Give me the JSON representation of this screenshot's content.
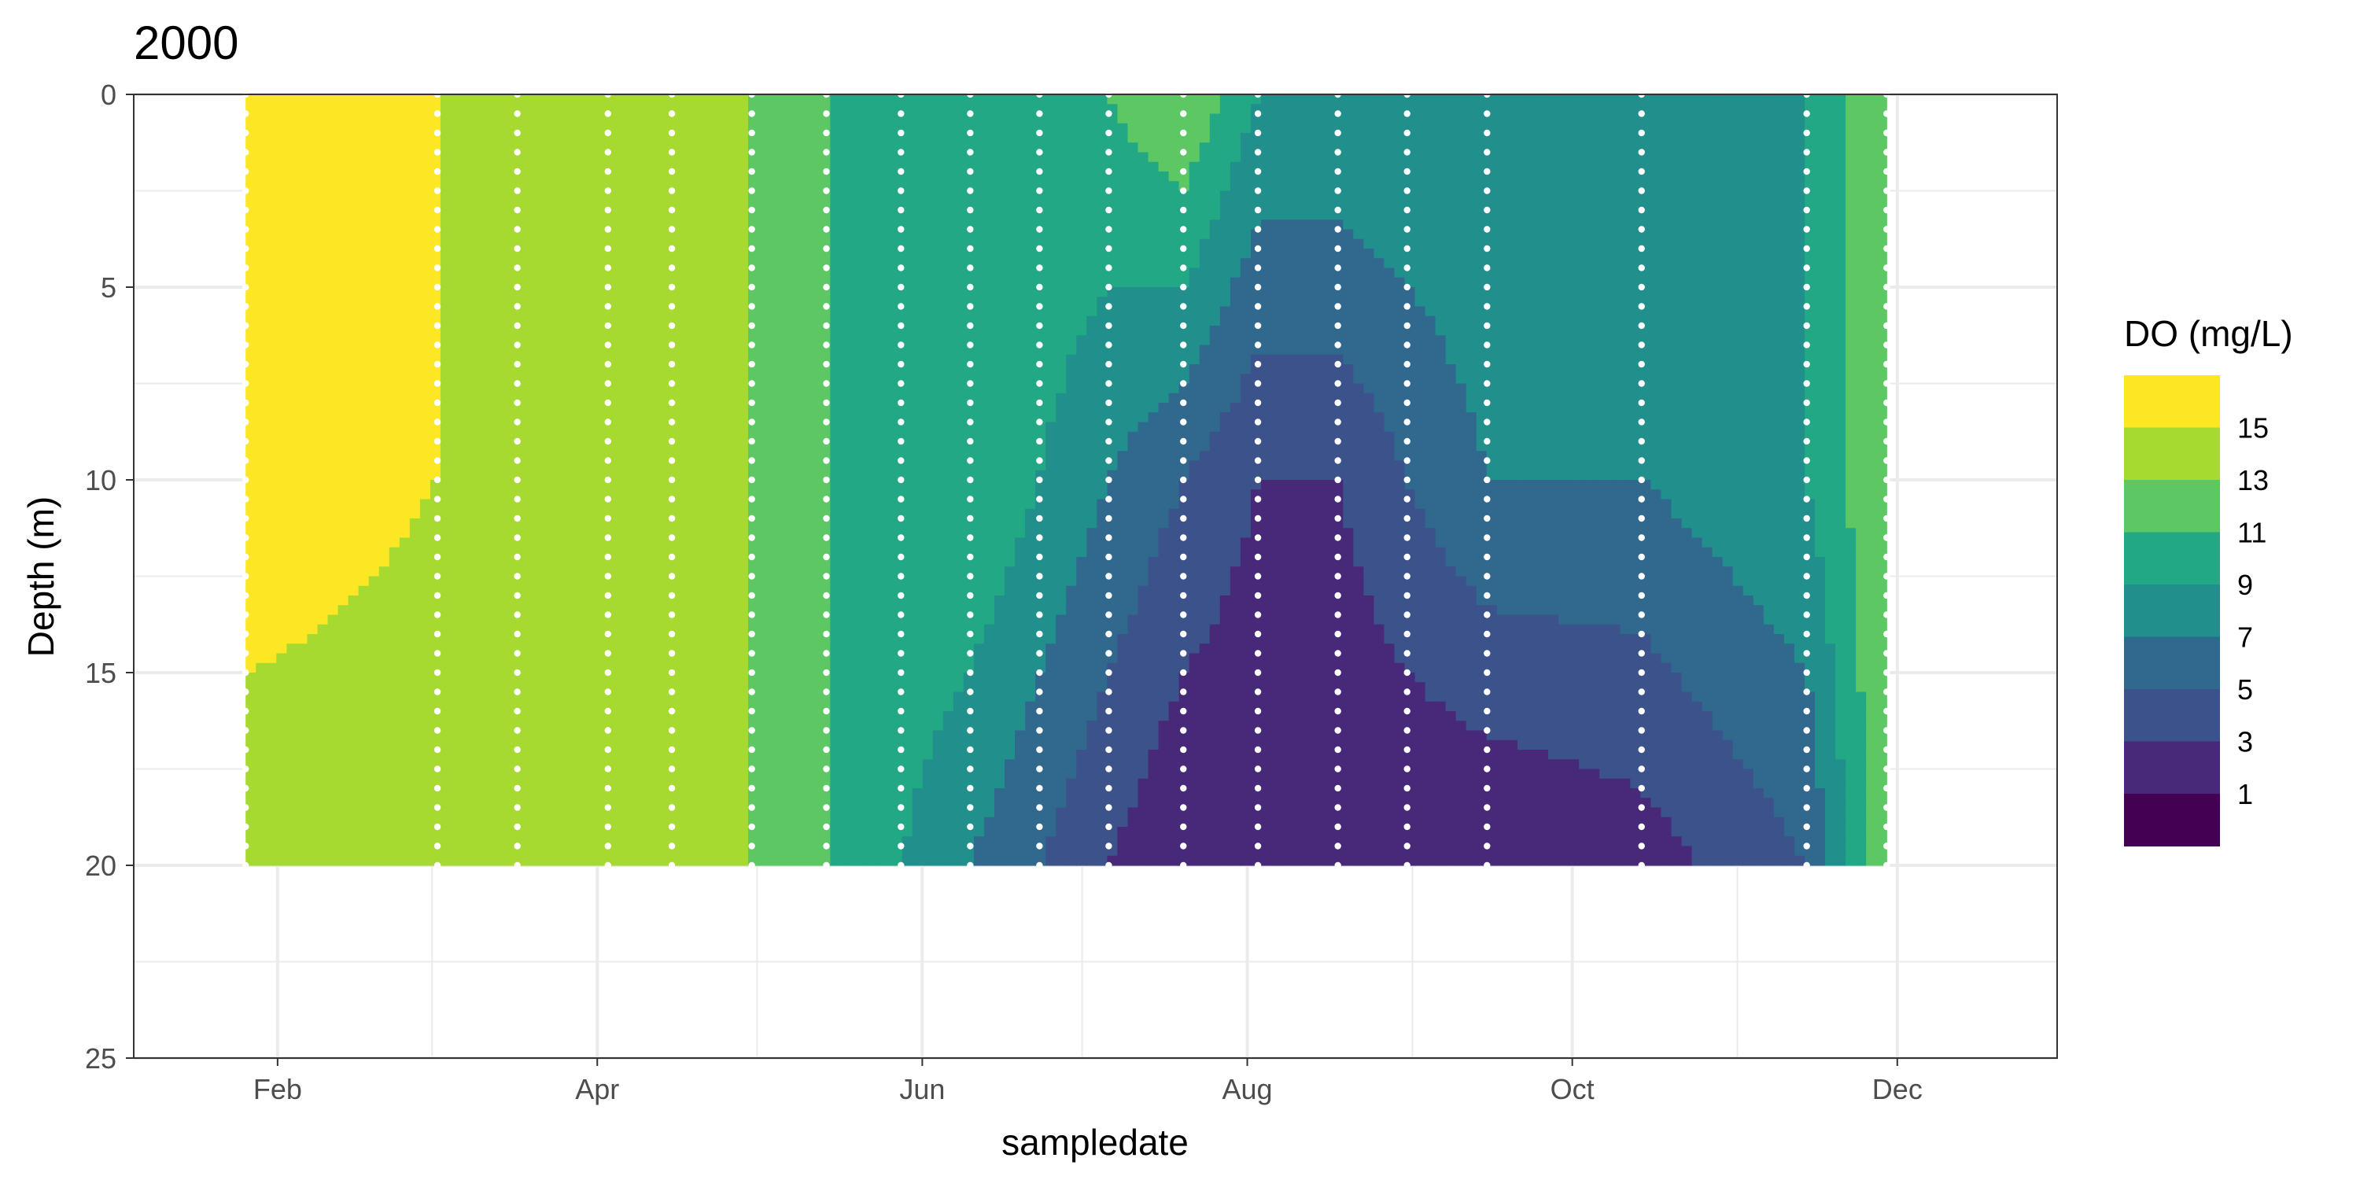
{
  "chart_data": {
    "type": "heatmap",
    "title": "2000",
    "xlabel": "sampledate",
    "ylabel": "Depth (m)",
    "x_ticks": [
      "Feb",
      "Apr",
      "Jun",
      "Aug",
      "Oct",
      "Dec"
    ],
    "y_ticks": [
      0,
      5,
      10,
      15,
      20,
      25
    ],
    "ylim": [
      0,
      25
    ],
    "y_reversed": true,
    "xlim": [
      "2000-01-05",
      "2000-12-31"
    ],
    "grid": true,
    "legend": {
      "title": "DO (mg/L)",
      "placement": "right",
      "breaks": [
        1,
        3,
        5,
        7,
        9,
        11,
        13,
        15
      ],
      "bins": [
        {
          "upper": 16,
          "color": "#FDE725"
        },
        {
          "upper": 14,
          "color": "#A6DA30"
        },
        {
          "upper": 12,
          "color": "#5DC863"
        },
        {
          "upper": 10,
          "color": "#22A884"
        },
        {
          "upper": 8,
          "color": "#21908C"
        },
        {
          "upper": 6,
          "color": "#31688E"
        },
        {
          "upper": 4,
          "color": "#3B528B"
        },
        {
          "upper": 2,
          "color": "#482878"
        },
        {
          "upper": 0,
          "color": "#440154"
        }
      ]
    },
    "sample_dates": [
      "2000-01-26",
      "2000-03-02",
      "2000-03-17",
      "2000-04-03",
      "2000-04-15",
      "2000-04-30",
      "2000-05-14",
      "2000-05-28",
      "2000-06-10",
      "2000-06-23",
      "2000-07-06",
      "2000-07-20",
      "2000-08-03",
      "2000-08-18",
      "2000-08-31",
      "2000-09-15",
      "2000-10-14",
      "2000-11-14",
      "2000-11-29"
    ],
    "depths": [
      0,
      10,
      20
    ],
    "do_values": [
      [
        16,
        16,
        12
      ],
      [
        14,
        14,
        12
      ],
      [
        14,
        14,
        13
      ],
      [
        14,
        14,
        14
      ],
      [
        12,
        14,
        14
      ],
      [
        12,
        12,
        12
      ],
      [
        10,
        10,
        10
      ],
      [
        10,
        10,
        8
      ],
      [
        10,
        10,
        6
      ],
      [
        10,
        8,
        4
      ],
      [
        10,
        6,
        2
      ],
      [
        12,
        4,
        0
      ],
      [
        8,
        2,
        0
      ],
      [
        8,
        2,
        0
      ],
      [
        8,
        4,
        0
      ],
      [
        8,
        6,
        0
      ],
      [
        6,
        6,
        1
      ],
      [
        8,
        8,
        4
      ],
      [
        12,
        12,
        12
      ]
    ]
  }
}
